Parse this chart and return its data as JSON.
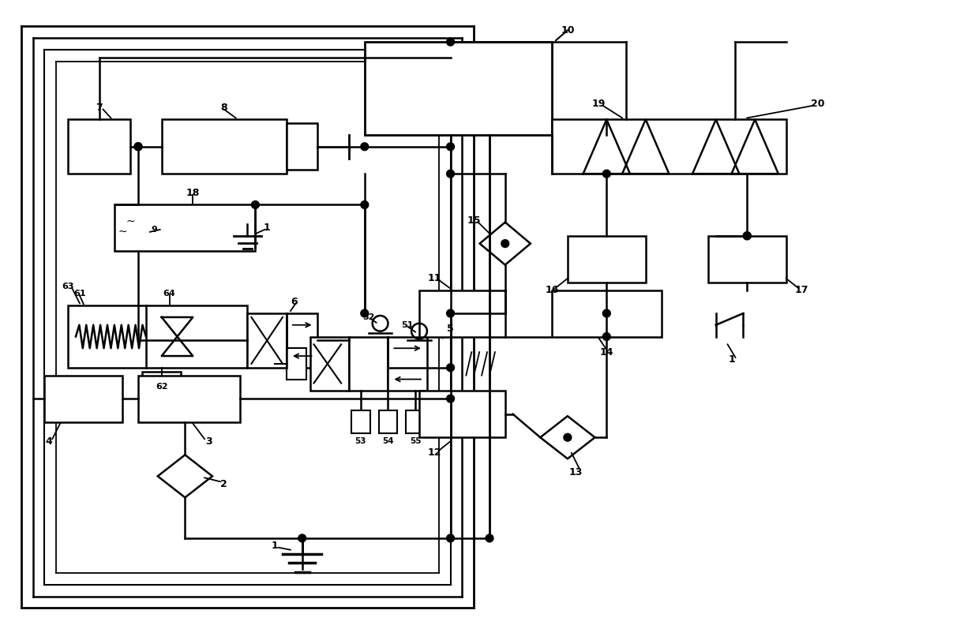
{
  "bg_color": "#ffffff",
  "lw": 1.8,
  "fig_width": 12.4,
  "fig_height": 7.97
}
